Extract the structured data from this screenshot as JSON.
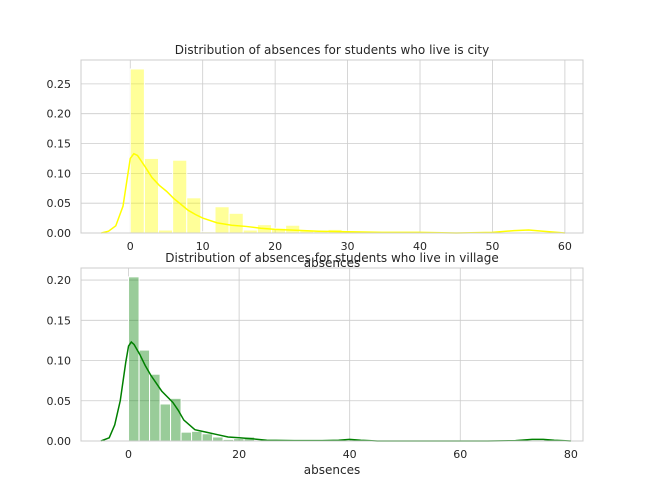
{
  "chart_data": [
    {
      "type": "bar",
      "title": "Distribution of absences for students who live is city",
      "xlabel": "absences",
      "ylabel": "",
      "xlim": [
        -6.8,
        62.5
      ],
      "ylim": [
        0,
        0.29
      ],
      "xticks": [
        0,
        10,
        20,
        30,
        40,
        50,
        60
      ],
      "yticks": [
        0.0,
        0.05,
        0.1,
        0.15,
        0.2,
        0.25
      ],
      "ytick_labels": [
        "0.00",
        "0.05",
        "0.10",
        "0.15",
        "0.20",
        "0.25"
      ],
      "grid": true,
      "colors": {
        "bar": "#ffff00",
        "line": "#ffff00"
      },
      "bin_width": 1.95,
      "series": [
        {
          "kind": "histogram",
          "bin_left": [
            0.0,
            1.95,
            3.9,
            5.85,
            7.8,
            9.75,
            11.7,
            13.65,
            15.6,
            17.55,
            19.5,
            21.45,
            23.4,
            25.35,
            27.3,
            29.25,
            31.2,
            33.15,
            35.1,
            37.05,
            39.0,
            40.95,
            42.9,
            44.85,
            46.8,
            48.75,
            50.7,
            52.65,
            54.6,
            56.55
          ],
          "values": [
            0.275,
            0.125,
            0.005,
            0.122,
            0.059,
            0.002,
            0.044,
            0.033,
            0.005,
            0.014,
            0.008,
            0.013,
            0.004,
            0.003,
            0.006,
            0.003,
            0.0,
            0.0,
            0.0,
            0.0,
            0.0,
            0.0,
            0.0,
            0.0,
            0.0,
            0.0,
            0.0,
            0.0,
            0.002,
            0.0
          ]
        },
        {
          "kind": "kde",
          "x": [
            -4,
            -3,
            -2,
            -1,
            -0.5,
            0,
            0.5,
            1,
            2,
            3,
            4,
            5,
            6,
            7,
            8,
            9,
            10,
            12,
            14,
            16,
            18,
            20,
            22,
            24,
            26,
            30,
            35,
            40,
            45,
            50,
            53,
            55,
            57,
            60
          ],
          "y": [
            0.0,
            0.003,
            0.012,
            0.045,
            0.085,
            0.125,
            0.133,
            0.13,
            0.112,
            0.093,
            0.08,
            0.07,
            0.058,
            0.048,
            0.038,
            0.031,
            0.025,
            0.017,
            0.013,
            0.011,
            0.008,
            0.006,
            0.005,
            0.004,
            0.003,
            0.002,
            0.001,
            0.001,
            0.0,
            0.001,
            0.004,
            0.005,
            0.003,
            0.0
          ]
        }
      ]
    },
    {
      "type": "bar",
      "title": "Distribution of absences for students who live in village",
      "xlabel": "absences",
      "ylabel": "",
      "xlim": [
        -8.6,
        82.2
      ],
      "ylim": [
        0,
        0.215
      ],
      "xticks": [
        0,
        20,
        40,
        60,
        80
      ],
      "yticks": [
        0.0,
        0.05,
        0.1,
        0.15,
        0.2
      ],
      "ytick_labels": [
        "0.00",
        "0.05",
        "0.10",
        "0.15",
        "0.20"
      ],
      "grid": true,
      "colors": {
        "bar": "#008000",
        "line": "#008000"
      },
      "bin_width": 1.9,
      "series": [
        {
          "kind": "histogram",
          "bin_left": [
            0.0,
            1.9,
            3.8,
            5.7,
            7.6,
            9.5,
            11.4,
            13.3,
            15.2,
            17.1,
            19.0,
            20.9,
            22.8,
            24.7,
            38.0,
            39.9,
            73.2,
            75.1
          ],
          "values": [
            0.204,
            0.113,
            0.083,
            0.046,
            0.053,
            0.011,
            0.012,
            0.009,
            0.005,
            0.002,
            0.003,
            0.005,
            0.001,
            0.0,
            0.001,
            0.002,
            0.001,
            0.002
          ]
        },
        {
          "kind": "kde",
          "x": [
            -5,
            -3.5,
            -2.5,
            -1.5,
            -0.5,
            0,
            0.5,
            1,
            2,
            3,
            4,
            5,
            6,
            7,
            8,
            9,
            10,
            12,
            14,
            16,
            18,
            20,
            22,
            25,
            30,
            35,
            38,
            40,
            42,
            45,
            55,
            65,
            70,
            73,
            75,
            77,
            80
          ],
          "y": [
            0.0,
            0.004,
            0.02,
            0.05,
            0.098,
            0.118,
            0.123,
            0.12,
            0.108,
            0.094,
            0.082,
            0.072,
            0.062,
            0.055,
            0.048,
            0.038,
            0.026,
            0.014,
            0.011,
            0.008,
            0.005,
            0.004,
            0.003,
            0.001,
            0.0005,
            0.0005,
            0.001,
            0.002,
            0.001,
            0.0,
            0.0,
            0.0,
            0.0005,
            0.002,
            0.002,
            0.001,
            0.0
          ]
        }
      ]
    }
  ]
}
